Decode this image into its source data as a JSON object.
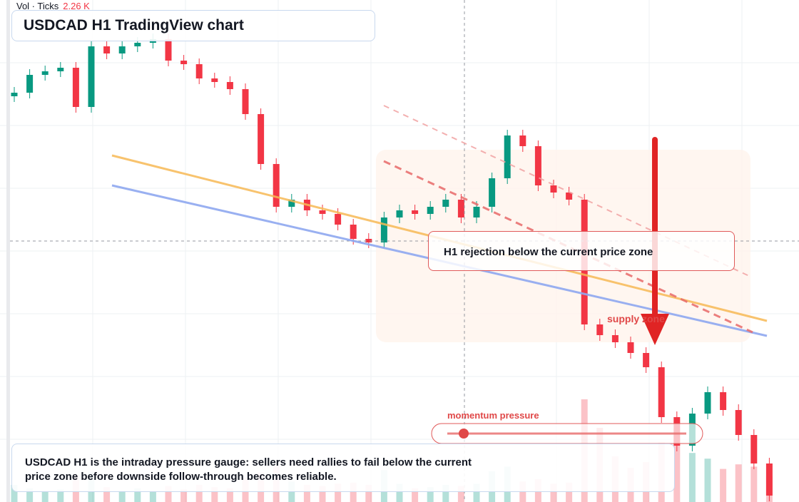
{
  "chart_data": {
    "type": "candlestick",
    "title": "USDCAD H1 TradingView chart",
    "volume_legend": {
      "label": "Vol · Ticks",
      "value": 2260,
      "value_label": "2.26 K"
    },
    "annotation": "H1 rejection below the current price zone",
    "zone_label": "supply zone",
    "gauge_label": "momentum pressure",
    "note": "USDCAD H1 is the intraday pressure gauge: sellers need rallies to fail below the current price zone before downside follow-through becomes reliable.",
    "up_color": "#089981",
    "down_color": "#f23645",
    "ylim": [
      1.3448,
      1.38
    ],
    "vlim": [
      0,
      10000
    ],
    "open": [
      1.37325,
      1.3735,
      1.37475,
      1.375,
      1.37525,
      1.3725,
      1.37675,
      1.37625,
      1.37675,
      1.377,
      1.37725,
      1.37575,
      1.3755,
      1.3745,
      1.37425,
      1.37375,
      1.372,
      1.3685,
      1.3655,
      1.366,
      1.36525,
      1.365,
      1.36425,
      1.36325,
      1.363,
      1.36475,
      1.36525,
      1.365,
      1.3655,
      1.366,
      1.36475,
      1.3655,
      1.3675,
      1.3705,
      1.36975,
      1.367,
      1.3665,
      1.366,
      1.35725,
      1.3565,
      1.356,
      1.35525,
      1.35425,
      1.35075,
      1.34875,
      1.351,
      1.3525,
      1.35125,
      1.3495,
      1.3475
    ],
    "high": [
      1.3739,
      1.37515,
      1.3754,
      1.37565,
      1.37565,
      1.37715,
      1.37715,
      1.37715,
      1.3774,
      1.37765,
      1.37765,
      1.37615,
      1.3759,
      1.3749,
      1.37465,
      1.37415,
      1.3724,
      1.3689,
      1.3664,
      1.3664,
      1.36565,
      1.3654,
      1.36465,
      1.36365,
      1.36515,
      1.36565,
      1.36565,
      1.3659,
      1.3664,
      1.3664,
      1.3659,
      1.3679,
      1.3709,
      1.3709,
      1.37015,
      1.3674,
      1.3669,
      1.3664,
      1.35765,
      1.3569,
      1.3564,
      1.35565,
      1.35465,
      1.35115,
      1.3514,
      1.3529,
      1.3529,
      1.35165,
      1.3499,
      1.3479
    ],
    "low": [
      1.37285,
      1.3731,
      1.37435,
      1.3746,
      1.3721,
      1.3721,
      1.37585,
      1.37585,
      1.37635,
      1.3766,
      1.37535,
      1.3751,
      1.3741,
      1.37385,
      1.37335,
      1.3716,
      1.3681,
      1.3651,
      1.3651,
      1.36485,
      1.3646,
      1.36385,
      1.36285,
      1.3626,
      1.3626,
      1.36435,
      1.3646,
      1.3646,
      1.3651,
      1.36435,
      1.36435,
      1.3651,
      1.3671,
      1.36935,
      1.3666,
      1.3661,
      1.3656,
      1.35685,
      1.3561,
      1.3556,
      1.35485,
      1.35385,
      1.35035,
      1.34835,
      1.34835,
      1.3506,
      1.35085,
      1.3491,
      1.3471,
      1.34485
    ],
    "close": [
      1.3735,
      1.37475,
      1.375,
      1.37525,
      1.3725,
      1.37675,
      1.37625,
      1.37675,
      1.377,
      1.37725,
      1.37575,
      1.3755,
      1.3745,
      1.37425,
      1.37375,
      1.372,
      1.3685,
      1.3655,
      1.366,
      1.36525,
      1.365,
      1.36425,
      1.36325,
      1.363,
      1.36475,
      1.36525,
      1.365,
      1.3655,
      1.366,
      1.36475,
      1.3655,
      1.3675,
      1.3705,
      1.36975,
      1.367,
      1.3665,
      1.366,
      1.35725,
      1.3565,
      1.356,
      1.35525,
      1.35425,
      1.35075,
      1.34875,
      1.351,
      1.3525,
      1.35125,
      1.3495,
      1.3475,
      1.34525
    ],
    "volume": [
      1500,
      1200,
      900,
      1100,
      2400,
      2600,
      1300,
      1000,
      1200,
      900,
      1400,
      1100,
      1500,
      1300,
      1200,
      2100,
      2600,
      3200,
      1800,
      1500,
      1400,
      1600,
      1700,
      1500,
      2800,
      1600,
      1200,
      1300,
      1500,
      1400,
      1600,
      2700,
      3100,
      1800,
      2000,
      1600,
      1700,
      9000,
      6500,
      4000,
      3000,
      3500,
      5200,
      6000,
      4300,
      3800,
      2900,
      3300,
      3100,
      2260
    ]
  }
}
